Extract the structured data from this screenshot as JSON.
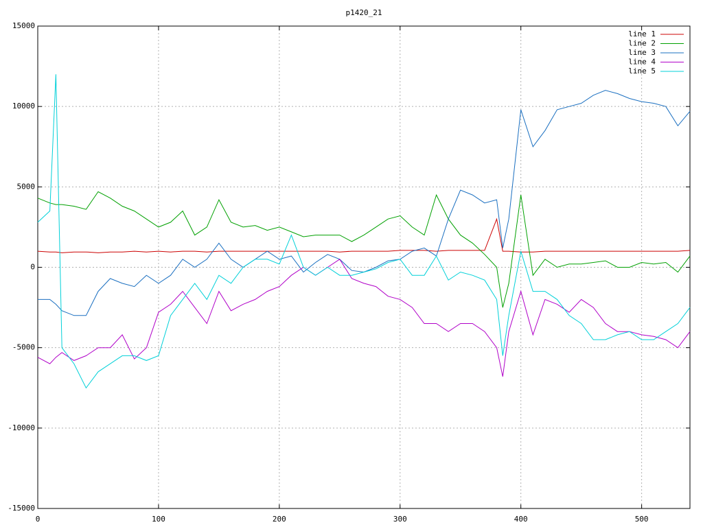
{
  "chart_data": {
    "type": "line",
    "title": "p1420_21",
    "x": [
      0,
      10,
      15,
      20,
      30,
      40,
      50,
      60,
      70,
      80,
      90,
      100,
      110,
      120,
      130,
      140,
      150,
      160,
      170,
      180,
      190,
      200,
      210,
      220,
      230,
      240,
      250,
      260,
      270,
      280,
      290,
      300,
      310,
      320,
      330,
      340,
      350,
      360,
      370,
      380,
      385,
      390,
      400,
      410,
      420,
      430,
      440,
      450,
      460,
      470,
      480,
      490,
      500,
      510,
      520,
      530,
      540
    ],
    "series": [
      {
        "name": "line 1",
        "color": "#cc0000",
        "values": [
          1000,
          950,
          950,
          900,
          950,
          950,
          900,
          950,
          950,
          1000,
          950,
          1000,
          950,
          1000,
          1000,
          950,
          1000,
          1000,
          1000,
          1000,
          1000,
          1000,
          1000,
          1000,
          1000,
          1000,
          950,
          1000,
          1000,
          1000,
          1000,
          1050,
          1050,
          1050,
          1000,
          1050,
          1050,
          1050,
          1050,
          3000,
          1000,
          1000,
          950,
          950,
          1000,
          1000,
          1000,
          1000,
          1000,
          1000,
          1000,
          1000,
          1000,
          1000,
          1000,
          1000,
          1050
        ]
      },
      {
        "name": "line 2",
        "color": "#00a000",
        "values": [
          4300,
          4000,
          3900,
          3900,
          3800,
          3600,
          4700,
          4300,
          3800,
          3500,
          3000,
          2500,
          2800,
          3500,
          2000,
          2500,
          4200,
          2800,
          2500,
          2600,
          2300,
          2500,
          2200,
          1900,
          2000,
          2000,
          2000,
          1600,
          2000,
          2500,
          3000,
          3200,
          2500,
          2000,
          4500,
          3000,
          2000,
          1500,
          800,
          0,
          -2500,
          -1000,
          4500,
          -500,
          500,
          0,
          200,
          200,
          300,
          400,
          0,
          0,
          300,
          200,
          300,
          -300,
          700
        ]
      },
      {
        "name": "line 3",
        "color": "#1a6fc0",
        "values": [
          -2000,
          -2000,
          -2300,
          -2700,
          -3000,
          -3000,
          -1500,
          -700,
          -1000,
          -1200,
          -500,
          -1000,
          -500,
          500,
          0,
          500,
          1500,
          500,
          0,
          500,
          1000,
          500,
          700,
          -300,
          300,
          800,
          500,
          -200,
          -300,
          0,
          400,
          500,
          1000,
          1200,
          700,
          3000,
          4800,
          4500,
          4000,
          4200,
          1200,
          3000,
          9800,
          7500,
          8500,
          9800,
          10000,
          10200,
          10700,
          11000,
          10800,
          10500,
          10300,
          10200,
          10000,
          8800,
          9700
        ]
      },
      {
        "name": "line 4",
        "color": "#b000c8",
        "values": [
          -5600,
          -6000,
          -5600,
          -5300,
          -5800,
          -5500,
          -5000,
          -5000,
          -4200,
          -5700,
          -5000,
          -2800,
          -2300,
          -1500,
          -2500,
          -3500,
          -1500,
          -2700,
          -2300,
          -2000,
          -1500,
          -1200,
          -500,
          0,
          -500,
          0,
          500,
          -700,
          -1000,
          -1200,
          -1800,
          -2000,
          -2500,
          -3500,
          -3500,
          -4000,
          -3500,
          -3500,
          -4000,
          -5000,
          -6800,
          -4000,
          -1500,
          -4200,
          -2000,
          -2300,
          -2800,
          -2000,
          -2500,
          -3500,
          -4000,
          -4000,
          -4200,
          -4300,
          -4500,
          -5000,
          -4000
        ]
      },
      {
        "name": "line 5",
        "color": "#00d0d8",
        "values": [
          2800,
          3500,
          12000,
          -5000,
          -6000,
          -7500,
          -6500,
          -6000,
          -5500,
          -5500,
          -5800,
          -5500,
          -3000,
          -2000,
          -1000,
          -2000,
          -500,
          -1000,
          0,
          500,
          500,
          200,
          2000,
          0,
          -500,
          0,
          -500,
          -500,
          -300,
          -100,
          300,
          500,
          -500,
          -500,
          700,
          -800,
          -300,
          -500,
          -800,
          -2000,
          -5500,
          -3000,
          1000,
          -1500,
          -1500,
          -2000,
          -3000,
          -3500,
          -4500,
          -4500,
          -4200,
          -4000,
          -4500,
          -4500,
          -4000,
          -3500,
          -2500
        ]
      }
    ],
    "xlim": [
      0,
      540
    ],
    "ylim": [
      -15000,
      15000
    ],
    "xticks": [
      0,
      100,
      200,
      300,
      400,
      500
    ],
    "yticks": [
      -15000,
      -10000,
      -5000,
      0,
      5000,
      10000,
      15000
    ],
    "grid": true,
    "legend": "upper right"
  }
}
